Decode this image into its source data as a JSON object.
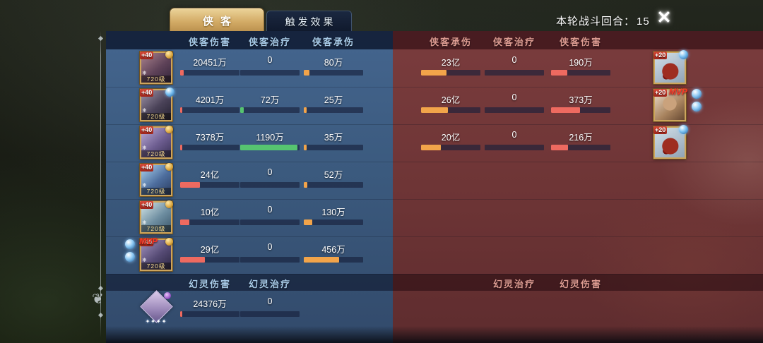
{
  "header": {
    "tabs": [
      {
        "label": "侠客",
        "active": true
      },
      {
        "label": "触发效果",
        "active": false
      }
    ],
    "round_label": "本轮战斗回合：",
    "round_value": "15",
    "close_icon": "✕"
  },
  "table": {
    "left_columns": [
      "侠客伤害",
      "侠客治疗",
      "侠客承伤"
    ],
    "right_columns": [
      "侠客承伤",
      "侠客治疗",
      "侠客伤害"
    ],
    "pet_left_columns": [
      "幻灵伤害",
      "幻灵治疗"
    ],
    "pet_right_columns": [
      "幻灵治疗",
      "幻灵伤害"
    ],
    "colors": {
      "damage": "#ee6a60",
      "heal": "#56c470",
      "taken": "#f2a44a"
    },
    "hero_rows": [
      {
        "left": [
          {
            "value": "20451万",
            "pct": 6,
            "color": "damage"
          },
          {
            "value": "0",
            "pct": 0,
            "color": "heal"
          },
          {
            "value": "80万",
            "pct": 10,
            "color": "taken"
          }
        ],
        "left_avatar": {
          "skin": "hero1",
          "badge": "+40",
          "level": "720级",
          "mvp": false,
          "gem": false,
          "medal": true,
          "orbs_left": false
        },
        "right": [
          {
            "value": "23亿",
            "pct": 43,
            "color": "taken"
          },
          {
            "value": "0",
            "pct": 0,
            "color": "heal"
          },
          {
            "value": "190万",
            "pct": 27,
            "color": "damage"
          }
        ],
        "right_avatar": {
          "skin": "creature",
          "badge": "+20",
          "mvp": false,
          "gem": true,
          "orbs_right": false
        }
      },
      {
        "left": [
          {
            "value": "4201万",
            "pct": 4,
            "color": "damage"
          },
          {
            "value": "72万",
            "pct": 6,
            "color": "heal"
          },
          {
            "value": "25万",
            "pct": 5,
            "color": "taken"
          }
        ],
        "left_avatar": {
          "skin": "hero2",
          "badge": "+40",
          "level": "720级",
          "mvp": false,
          "gem": true,
          "medal": false,
          "orbs_left": false
        },
        "right": [
          {
            "value": "26亿",
            "pct": 45,
            "color": "taken"
          },
          {
            "value": "0",
            "pct": 0,
            "color": "heal"
          },
          {
            "value": "373万",
            "pct": 49,
            "color": "damage"
          }
        ],
        "right_avatar": {
          "skin": "face",
          "badge": "+20",
          "mvp": true,
          "gem": false,
          "orbs_right": true
        }
      },
      {
        "left": [
          {
            "value": "7378万",
            "pct": 4,
            "color": "damage"
          },
          {
            "value": "1190万",
            "pct": 97,
            "color": "heal"
          },
          {
            "value": "35万",
            "pct": 5,
            "color": "taken"
          }
        ],
        "left_avatar": {
          "skin": "hero3",
          "badge": "+40",
          "level": "720级",
          "mvp": false,
          "gem": false,
          "medal": true,
          "orbs_left": false
        },
        "right": [
          {
            "value": "20亿",
            "pct": 33,
            "color": "taken"
          },
          {
            "value": "0",
            "pct": 0,
            "color": "heal"
          },
          {
            "value": "216万",
            "pct": 29,
            "color": "damage"
          }
        ],
        "right_avatar": {
          "skin": "creature",
          "badge": "+20",
          "mvp": false,
          "gem": true,
          "orbs_right": false
        }
      },
      {
        "left": [
          {
            "value": "24亿",
            "pct": 33,
            "color": "damage"
          },
          {
            "value": "0",
            "pct": 0,
            "color": "heal"
          },
          {
            "value": "52万",
            "pct": 6,
            "color": "taken"
          }
        ],
        "left_avatar": {
          "skin": "hero4",
          "badge": "+40",
          "level": "720级",
          "mvp": false,
          "gem": false,
          "medal": true,
          "orbs_left": false
        },
        "right": null,
        "right_avatar": null
      },
      {
        "left": [
          {
            "value": "10亿",
            "pct": 15,
            "color": "damage"
          },
          {
            "value": "0",
            "pct": 0,
            "color": "heal"
          },
          {
            "value": "130万",
            "pct": 14,
            "color": "taken"
          }
        ],
        "left_avatar": {
          "skin": "hero5",
          "badge": "+40",
          "level": "720级",
          "mvp": false,
          "gem": false,
          "medal": true,
          "orbs_left": false
        },
        "right": null,
        "right_avatar": null
      },
      {
        "left": [
          {
            "value": "29亿",
            "pct": 42,
            "color": "damage"
          },
          {
            "value": "0",
            "pct": 0,
            "color": "heal"
          },
          {
            "value": "456万",
            "pct": 60,
            "color": "taken"
          }
        ],
        "left_avatar": {
          "skin": "hero6",
          "badge": "+40",
          "level": "720级",
          "mvp": true,
          "gem": false,
          "medal": true,
          "orbs_left": true
        },
        "right": null,
        "right_avatar": null
      }
    ],
    "pet_rows": [
      {
        "left": [
          {
            "value": "24376万",
            "pct": 3,
            "color": "damage"
          },
          {
            "value": "0",
            "pct": 0,
            "color": "heal"
          }
        ],
        "avatar": {
          "skin": "pet",
          "stars": "✦✦✦✦"
        }
      }
    ]
  }
}
